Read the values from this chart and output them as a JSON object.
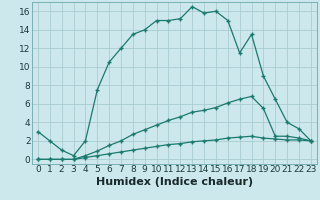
{
  "xlabel": "Humidex (Indice chaleur)",
  "background_color": "#cce8ec",
  "line_color": "#1a7a6e",
  "xlim": [
    -0.5,
    23.5
  ],
  "ylim": [
    -0.5,
    17.0
  ],
  "xtick_labels": [
    "0",
    "1",
    "2",
    "3",
    "4",
    "5",
    "6",
    "7",
    "8",
    "9",
    "10",
    "11",
    "12",
    "13",
    "14",
    "15",
    "16",
    "17",
    "18",
    "19",
    "20",
    "21",
    "22",
    "23"
  ],
  "ytick_vals": [
    0,
    2,
    4,
    6,
    8,
    10,
    12,
    14,
    16
  ],
  "series1_x": [
    0,
    1,
    2,
    3,
    4,
    5,
    6,
    7,
    8,
    9,
    10,
    11,
    12,
    13,
    14,
    15,
    16,
    17,
    18,
    19,
    20,
    21,
    22,
    23
  ],
  "series1_y": [
    3.0,
    2.0,
    1.0,
    0.4,
    2.0,
    7.5,
    10.5,
    12.0,
    13.5,
    14.0,
    15.0,
    15.0,
    15.2,
    16.5,
    15.8,
    16.0,
    15.0,
    11.5,
    13.5,
    9.0,
    6.5,
    4.0,
    3.3,
    2.0
  ],
  "series2_x": [
    0,
    1,
    2,
    3,
    4,
    5,
    6,
    7,
    8,
    9,
    10,
    11,
    12,
    13,
    14,
    15,
    16,
    17,
    18,
    19,
    20,
    21,
    22,
    23
  ],
  "series2_y": [
    0.0,
    0.0,
    0.0,
    0.0,
    0.2,
    0.4,
    0.6,
    0.8,
    1.0,
    1.2,
    1.4,
    1.6,
    1.7,
    1.9,
    2.0,
    2.1,
    2.3,
    2.4,
    2.5,
    2.3,
    2.2,
    2.1,
    2.1,
    2.0
  ],
  "series3_x": [
    0,
    1,
    2,
    3,
    4,
    5,
    6,
    7,
    8,
    9,
    10,
    11,
    12,
    13,
    14,
    15,
    16,
    17,
    18,
    19,
    20,
    21,
    22,
    23
  ],
  "series3_y": [
    0.0,
    0.0,
    0.0,
    0.0,
    0.4,
    0.9,
    1.5,
    2.0,
    2.7,
    3.2,
    3.7,
    4.2,
    4.6,
    5.1,
    5.3,
    5.6,
    6.1,
    6.5,
    6.8,
    5.5,
    2.5,
    2.5,
    2.3,
    2.0
  ],
  "grid_color": "#aaccd0",
  "xlabel_fontsize": 8,
  "tick_fontsize": 6.5
}
